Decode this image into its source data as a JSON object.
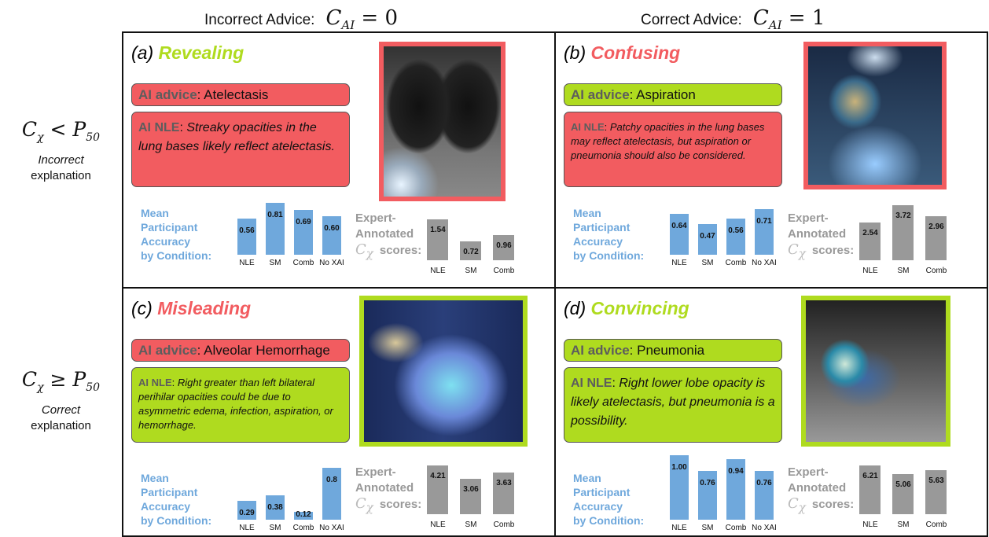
{
  "headers": [
    {
      "label": "Incorrect Advice:",
      "math_base": "C",
      "math_sub": "AI",
      "math_rel": "= 0"
    },
    {
      "label": "Correct Advice:",
      "math_base": "C",
      "math_sub": "AI",
      "math_rel": "= 1"
    }
  ],
  "rows": [
    {
      "math_base": "C",
      "math_sub": "χ",
      "math_rel": "<",
      "math_rhs": "P",
      "math_rhs_sub": "50",
      "line1": "Incorrect",
      "line2": "explanation"
    },
    {
      "math_base": "C",
      "math_sub": "χ",
      "math_rel": "≥",
      "math_rhs": "P",
      "math_rhs_sub": "50",
      "line1": "Correct",
      "line2": "explanation"
    }
  ],
  "colors": {
    "incorrect": "#f25c60",
    "correct": "#afdb1f",
    "accuracy_bar": "#6fa8dc",
    "expert_bar": "#999999",
    "frame": "#111111"
  },
  "accuracy_label": [
    "Mean",
    "Participant",
    "Accuracy",
    "by Condition:"
  ],
  "expert_label": [
    "Expert-",
    "Annotated"
  ],
  "expert_scores_math": "C",
  "expert_scores_math_sub": "χ",
  "expert_scores_word": "scores:",
  "advice_key": "AI advice",
  "nle_key": "AI NLE",
  "panels": [
    {
      "id": "a",
      "letter": "(a)",
      "title": "Revealing",
      "title_color": "correct",
      "advice": "Atelectasis",
      "advice_color": "incorrect",
      "nle": "Streaky opacities in the lung bases likely reflect atelectasis.",
      "nle_color": "incorrect",
      "image_frame": "incorrect",
      "accuracy": {
        "categories": [
          "NLE",
          "SM",
          "Comb",
          "No XAI"
        ],
        "values": [
          "0.56",
          "0.81",
          "0.69",
          "0.60"
        ]
      },
      "expert": {
        "categories": [
          "NLE",
          "SM",
          "Comb"
        ],
        "values": [
          "1.54",
          "0.72",
          "0.96"
        ]
      }
    },
    {
      "id": "b",
      "letter": "(b)",
      "title": "Confusing",
      "title_color": "incorrect",
      "advice": "Aspiration",
      "advice_color": "correct",
      "nle": "Patchy opacities in the lung bases may reflect atelectasis, but aspiration or pneumonia should also be considered.",
      "nle_color": "incorrect",
      "image_frame": "incorrect",
      "accuracy": {
        "categories": [
          "NLE",
          "SM",
          "Comb",
          "No XAI"
        ],
        "values": [
          "0.64",
          "0.47",
          "0.56",
          "0.71"
        ]
      },
      "expert": {
        "categories": [
          "NLE",
          "SM",
          "Comb"
        ],
        "values": [
          "2.54",
          "3.72",
          "2.96"
        ]
      }
    },
    {
      "id": "c",
      "letter": "(c)",
      "title": "Misleading",
      "title_color": "incorrect",
      "advice": "Alveolar Hemorrhage",
      "advice_color": "incorrect",
      "nle": "Right greater than left bilateral perihilar opacities could be due to asymmetric edema, infection, aspiration, or hemorrhage.",
      "nle_color": "correct",
      "image_frame": "correct",
      "accuracy": {
        "categories": [
          "NLE",
          "SM",
          "Comb",
          "No XAI"
        ],
        "values": [
          "0.29",
          "0.38",
          "0.12",
          "0.8"
        ]
      },
      "expert": {
        "categories": [
          "NLE",
          "SM",
          "Comb"
        ],
        "values": [
          "4.21",
          "3.06",
          "3.63"
        ]
      }
    },
    {
      "id": "d",
      "letter": "(d)",
      "title": "Convincing",
      "title_color": "correct",
      "advice": "Pneumonia",
      "advice_color": "correct",
      "nle": "Right lower lobe opacity is likely atelectasis, but pneumonia is a possibility.",
      "nle_color": "correct",
      "image_frame": "correct",
      "accuracy": {
        "categories": [
          "NLE",
          "SM",
          "Comb",
          "No XAI"
        ],
        "values": [
          "1.00",
          "0.76",
          "0.94",
          "0.76"
        ]
      },
      "expert": {
        "categories": [
          "NLE",
          "SM",
          "Comb"
        ],
        "values": [
          "6.21",
          "5.06",
          "5.63"
        ]
      }
    }
  ]
}
